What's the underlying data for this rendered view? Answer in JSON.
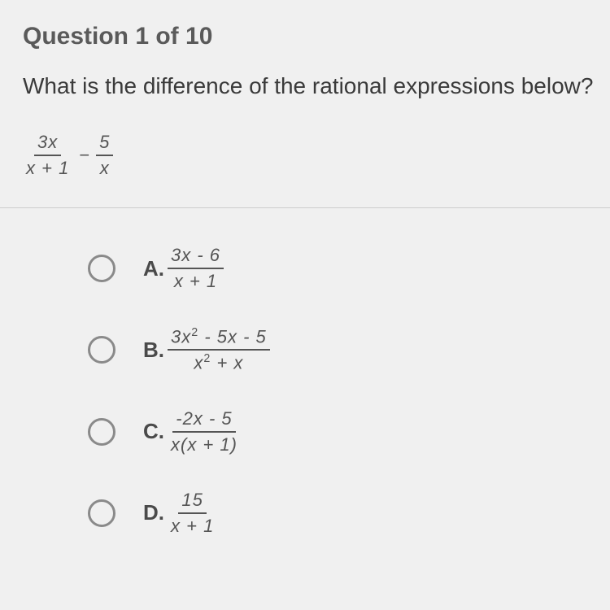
{
  "header": "Question 1 of 10",
  "prompt": "What is the difference of the rational expressions below?",
  "expression": {
    "left": {
      "num": "3x",
      "den": "x + 1"
    },
    "op": "−",
    "right": {
      "num": "5",
      "den": "x"
    }
  },
  "options": [
    {
      "letter": "A.",
      "num": "3x - 6",
      "den": "x + 1",
      "sup_num": false,
      "sup_den": false
    },
    {
      "letter": "B.",
      "num": "3x² - 5x - 5",
      "den": "x² + x",
      "sup_num": false,
      "sup_den": false
    },
    {
      "letter": "C.",
      "num": "-2x - 5",
      "den": "x(x + 1)",
      "sup_num": false,
      "sup_den": false
    },
    {
      "letter": "D.",
      "num": "15",
      "den": "x + 1",
      "sup_num": false,
      "sup_den": false
    }
  ],
  "colors": {
    "background": "#f0f0f0",
    "text_primary": "#3a3a3a",
    "text_header": "#5a5a5a",
    "math_text": "#555555",
    "radio_border": "#8a8a8a",
    "divider": "#cccccc"
  },
  "typography": {
    "header_fontsize": 30,
    "prompt_fontsize": 28,
    "option_letter_fontsize": 26,
    "math_fontsize": 22
  }
}
